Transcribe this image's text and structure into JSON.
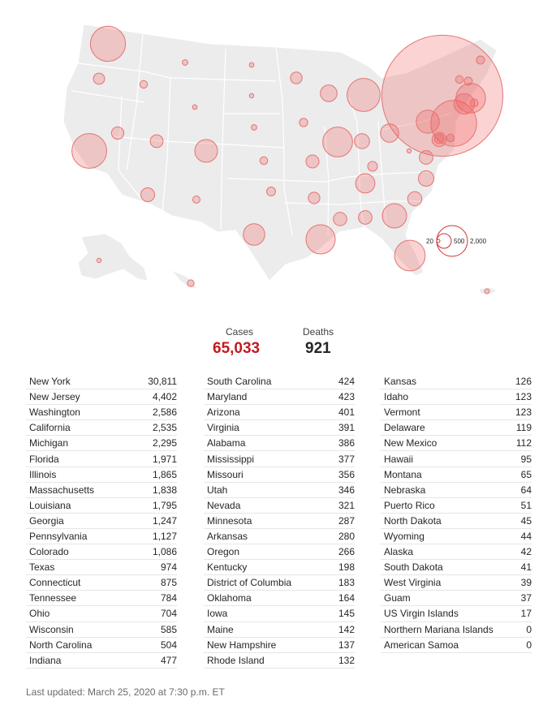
{
  "totals": {
    "cases_label": "Cases",
    "cases_value": "65,033",
    "deaths_label": "Deaths",
    "deaths_value": "921"
  },
  "legend": {
    "labels": [
      "20",
      "500",
      "2,000"
    ],
    "values": [
      20,
      500,
      2000
    ]
  },
  "colors": {
    "bubble_fill": "#f4a6a6",
    "bubble_stroke": "#e57373",
    "cases_accent": "#c4191f",
    "land": "#ececec"
  },
  "table": {
    "columns": [
      [
        {
          "name": "New York",
          "cases": "30,811"
        },
        {
          "name": "New Jersey",
          "cases": "4,402"
        },
        {
          "name": "Washington",
          "cases": "2,586"
        },
        {
          "name": "California",
          "cases": "2,535"
        },
        {
          "name": "Michigan",
          "cases": "2,295"
        },
        {
          "name": "Florida",
          "cases": "1,971"
        },
        {
          "name": "Illinois",
          "cases": "1,865"
        },
        {
          "name": "Massachusetts",
          "cases": "1,838"
        },
        {
          "name": "Louisiana",
          "cases": "1,795"
        },
        {
          "name": "Georgia",
          "cases": "1,247"
        },
        {
          "name": "Pennsylvania",
          "cases": "1,127"
        },
        {
          "name": "Colorado",
          "cases": "1,086"
        },
        {
          "name": "Texas",
          "cases": "974"
        },
        {
          "name": "Connecticut",
          "cases": "875"
        },
        {
          "name": "Tennessee",
          "cases": "784"
        },
        {
          "name": "Ohio",
          "cases": "704"
        },
        {
          "name": "Wisconsin",
          "cases": "585"
        },
        {
          "name": "North Carolina",
          "cases": "504"
        },
        {
          "name": "Indiana",
          "cases": "477"
        }
      ],
      [
        {
          "name": "South Carolina",
          "cases": "424"
        },
        {
          "name": "Maryland",
          "cases": "423"
        },
        {
          "name": "Arizona",
          "cases": "401"
        },
        {
          "name": "Virginia",
          "cases": "391"
        },
        {
          "name": "Alabama",
          "cases": "386"
        },
        {
          "name": "Mississippi",
          "cases": "377"
        },
        {
          "name": "Missouri",
          "cases": "356"
        },
        {
          "name": "Utah",
          "cases": "346"
        },
        {
          "name": "Nevada",
          "cases": "321"
        },
        {
          "name": "Minnesota",
          "cases": "287"
        },
        {
          "name": "Arkansas",
          "cases": "280"
        },
        {
          "name": "Oregon",
          "cases": "266"
        },
        {
          "name": "Kentucky",
          "cases": "198"
        },
        {
          "name": "District of Columbia",
          "cases": "183"
        },
        {
          "name": "Oklahoma",
          "cases": "164"
        },
        {
          "name": "Iowa",
          "cases": "145"
        },
        {
          "name": "Maine",
          "cases": "142"
        },
        {
          "name": "New Hampshire",
          "cases": "137"
        },
        {
          "name": "Rhode Island",
          "cases": "132"
        }
      ],
      [
        {
          "name": "Kansas",
          "cases": "126"
        },
        {
          "name": "Idaho",
          "cases": "123"
        },
        {
          "name": "Vermont",
          "cases": "123"
        },
        {
          "name": "Delaware",
          "cases": "119"
        },
        {
          "name": "New Mexico",
          "cases": "112"
        },
        {
          "name": "Hawaii",
          "cases": "95"
        },
        {
          "name": "Montana",
          "cases": "65"
        },
        {
          "name": "Nebraska",
          "cases": "64"
        },
        {
          "name": "Puerto Rico",
          "cases": "51"
        },
        {
          "name": "North Dakota",
          "cases": "45"
        },
        {
          "name": "Wyoming",
          "cases": "44"
        },
        {
          "name": "Alaska",
          "cases": "42"
        },
        {
          "name": "South Dakota",
          "cases": "41"
        },
        {
          "name": "West Virginia",
          "cases": "39"
        },
        {
          "name": "Guam",
          "cases": "37"
        },
        {
          "name": "US Virgin Islands",
          "cases": "17"
        },
        {
          "name": "Northern Mariana Islands",
          "cases": "0"
        },
        {
          "name": "American Samoa",
          "cases": "0"
        }
      ]
    ]
  },
  "footer": "Last updated: March 25, 2020 at 7:30 p.m. ET"
}
